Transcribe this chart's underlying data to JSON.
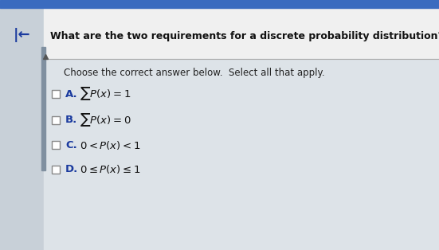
{
  "title": "What are the two requirements for a discrete probability distribution?",
  "subtitle": "Choose the correct answer below.  Select all that apply.",
  "options": [
    {
      "label": "A.",
      "math": "$\\sum P(x) = 1$"
    },
    {
      "label": "B.",
      "math": "$\\sum P(x) = 0$"
    },
    {
      "label": "C.",
      "math": "$0 < P(x) < 1$"
    },
    {
      "label": "D.",
      "math": "$0 \\leq P(x) \\leq 1$"
    }
  ],
  "top_bar_color": "#3a6bbf",
  "title_area_color": "#f0f0f0",
  "content_area_color": "#dde3e8",
  "left_panel_color": "#c8d0d8",
  "left_stripe_color": "#8090a0",
  "divider_color": "#aaaaaa",
  "title_color": "#111111",
  "subtitle_color": "#222222",
  "option_color": "#111111",
  "label_color": "#1a3a9e",
  "checkbox_edge_color": "#888888",
  "nav_arrow_color": "#1a3a9e",
  "figwidth": 5.51,
  "figheight": 3.14,
  "dpi": 100
}
